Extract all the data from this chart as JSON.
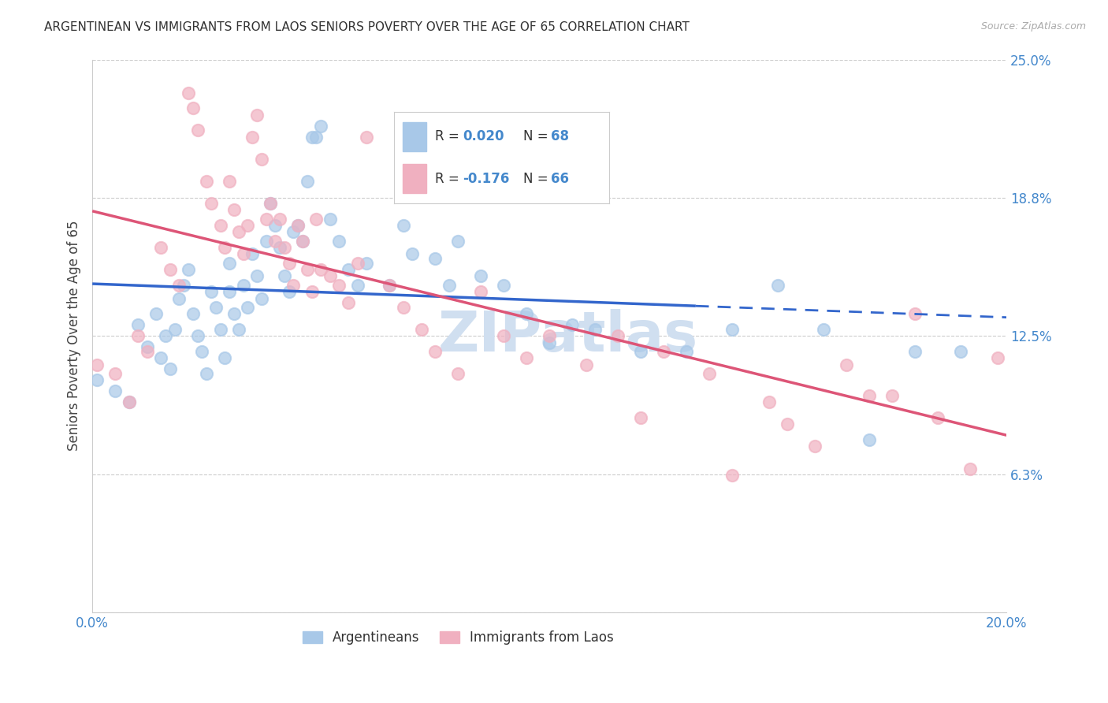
{
  "title": "ARGENTINEAN VS IMMIGRANTS FROM LAOS SENIORS POVERTY OVER THE AGE OF 65 CORRELATION CHART",
  "source": "Source: ZipAtlas.com",
  "ylabel": "Seniors Poverty Over the Age of 65",
  "xlim": [
    0.0,
    0.2
  ],
  "ylim": [
    0.0,
    0.25
  ],
  "yticks": [
    0.0,
    0.0625,
    0.125,
    0.1875,
    0.25
  ],
  "ytick_labels": [
    "",
    "6.3%",
    "12.5%",
    "18.8%",
    "25.0%"
  ],
  "xticks": [
    0.0,
    0.05,
    0.1,
    0.15,
    0.2
  ],
  "xtick_labels": [
    "0.0%",
    "",
    "",
    "",
    "20.0%"
  ],
  "color_blue": "#a8c8e8",
  "color_pink": "#f0b0c0",
  "color_blue_line": "#3366cc",
  "color_pink_line": "#dd5577",
  "color_axis_labels": "#4488cc",
  "watermark_color": "#d0dff0",
  "series1_x": [
    0.001,
    0.005,
    0.008,
    0.01,
    0.012,
    0.014,
    0.015,
    0.016,
    0.017,
    0.018,
    0.019,
    0.02,
    0.021,
    0.022,
    0.023,
    0.024,
    0.025,
    0.026,
    0.027,
    0.028,
    0.029,
    0.03,
    0.03,
    0.031,
    0.032,
    0.033,
    0.034,
    0.035,
    0.036,
    0.037,
    0.038,
    0.039,
    0.04,
    0.041,
    0.042,
    0.043,
    0.044,
    0.045,
    0.046,
    0.047,
    0.048,
    0.049,
    0.05,
    0.052,
    0.054,
    0.056,
    0.058,
    0.06,
    0.065,
    0.068,
    0.07,
    0.075,
    0.078,
    0.08,
    0.085,
    0.09,
    0.095,
    0.1,
    0.105,
    0.11,
    0.12,
    0.13,
    0.14,
    0.15,
    0.16,
    0.17,
    0.18,
    0.19
  ],
  "series1_y": [
    0.105,
    0.1,
    0.095,
    0.13,
    0.12,
    0.135,
    0.115,
    0.125,
    0.11,
    0.128,
    0.142,
    0.148,
    0.155,
    0.135,
    0.125,
    0.118,
    0.108,
    0.145,
    0.138,
    0.128,
    0.115,
    0.158,
    0.145,
    0.135,
    0.128,
    0.148,
    0.138,
    0.162,
    0.152,
    0.142,
    0.168,
    0.185,
    0.175,
    0.165,
    0.152,
    0.145,
    0.172,
    0.175,
    0.168,
    0.195,
    0.215,
    0.215,
    0.22,
    0.178,
    0.168,
    0.155,
    0.148,
    0.158,
    0.148,
    0.175,
    0.162,
    0.16,
    0.148,
    0.168,
    0.152,
    0.148,
    0.135,
    0.122,
    0.13,
    0.128,
    0.118,
    0.118,
    0.128,
    0.148,
    0.128,
    0.078,
    0.118,
    0.118
  ],
  "series2_x": [
    0.001,
    0.005,
    0.008,
    0.01,
    0.012,
    0.015,
    0.017,
    0.019,
    0.021,
    0.022,
    0.023,
    0.025,
    0.026,
    0.028,
    0.029,
    0.03,
    0.031,
    0.032,
    0.033,
    0.034,
    0.035,
    0.036,
    0.037,
    0.038,
    0.039,
    0.04,
    0.041,
    0.042,
    0.043,
    0.044,
    0.045,
    0.046,
    0.047,
    0.048,
    0.049,
    0.05,
    0.052,
    0.054,
    0.056,
    0.058,
    0.06,
    0.065,
    0.068,
    0.072,
    0.075,
    0.08,
    0.085,
    0.09,
    0.095,
    0.1,
    0.108,
    0.115,
    0.12,
    0.125,
    0.135,
    0.14,
    0.148,
    0.152,
    0.158,
    0.165,
    0.17,
    0.175,
    0.18,
    0.185,
    0.192,
    0.198
  ],
  "series2_y": [
    0.112,
    0.108,
    0.095,
    0.125,
    0.118,
    0.165,
    0.155,
    0.148,
    0.235,
    0.228,
    0.218,
    0.195,
    0.185,
    0.175,
    0.165,
    0.195,
    0.182,
    0.172,
    0.162,
    0.175,
    0.215,
    0.225,
    0.205,
    0.178,
    0.185,
    0.168,
    0.178,
    0.165,
    0.158,
    0.148,
    0.175,
    0.168,
    0.155,
    0.145,
    0.178,
    0.155,
    0.152,
    0.148,
    0.14,
    0.158,
    0.215,
    0.148,
    0.138,
    0.128,
    0.118,
    0.108,
    0.145,
    0.125,
    0.115,
    0.125,
    0.112,
    0.125,
    0.088,
    0.118,
    0.108,
    0.062,
    0.095,
    0.085,
    0.075,
    0.112,
    0.098,
    0.098,
    0.135,
    0.088,
    0.065,
    0.115
  ]
}
